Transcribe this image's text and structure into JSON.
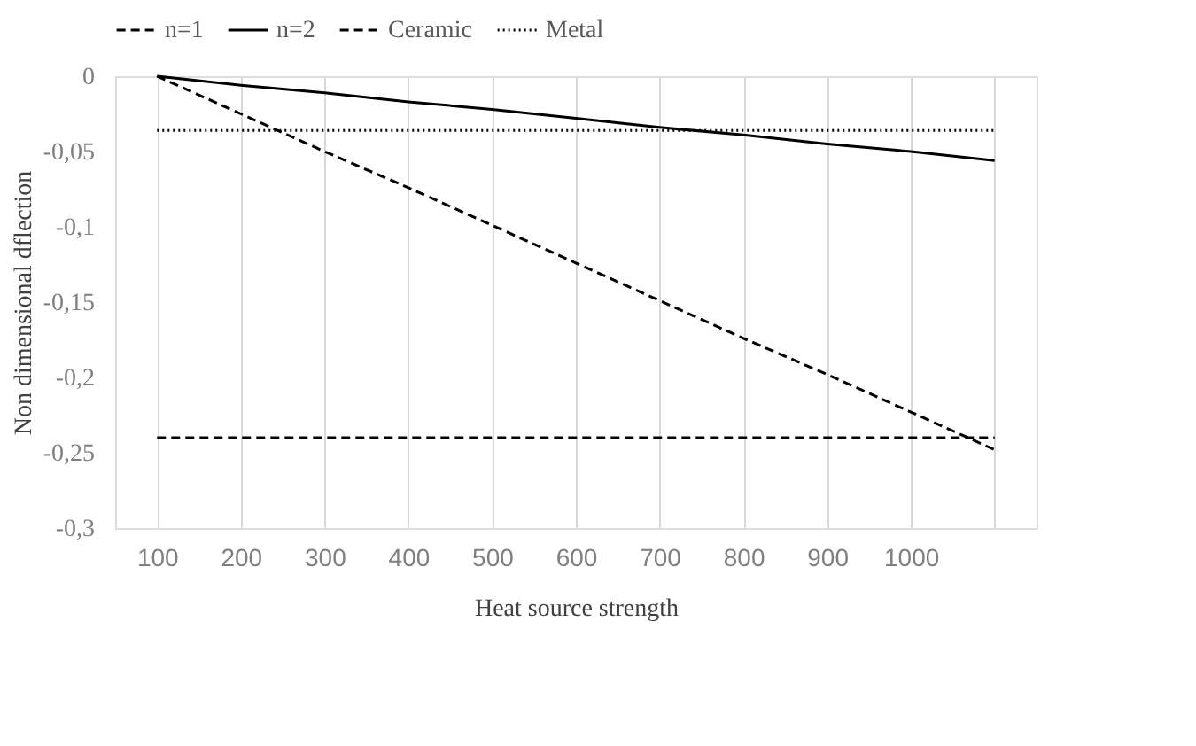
{
  "chart_data": {
    "type": "line",
    "xlabel": "Heat source strength",
    "ylabel": "Non dimensional  dflection",
    "categories": [
      "100",
      "200",
      "300",
      "400",
      "500",
      "600",
      "700",
      "800",
      "900",
      "1000",
      null
    ],
    "series": [
      {
        "name": "n=1",
        "color": "#000000",
        "line_style": "dashed",
        "values": [
          0,
          -0.025,
          -0.05,
          -0.074,
          -0.099,
          -0.124,
          -0.149,
          -0.174,
          -0.198,
          -0.223,
          -0.248
        ]
      },
      {
        "name": "n=2",
        "color": "#000000",
        "line_style": "solid",
        "values": [
          0,
          -0.006,
          -0.011,
          -0.017,
          -0.022,
          -0.028,
          -0.034,
          -0.039,
          -0.045,
          -0.05,
          -0.056
        ]
      },
      {
        "name": "Ceramic",
        "color": "#000000",
        "line_style": "dashed",
        "values": [
          -0.24,
          -0.24,
          -0.24,
          -0.24,
          -0.24,
          -0.24,
          -0.24,
          -0.24,
          -0.24,
          -0.24,
          -0.24
        ]
      },
      {
        "name": "Metal",
        "color": "#000000",
        "line_style": "dotted",
        "values": [
          -0.036,
          -0.036,
          -0.036,
          -0.036,
          -0.036,
          -0.036,
          -0.036,
          -0.036,
          -0.036,
          -0.036,
          -0.036
        ]
      }
    ],
    "ylim": [
      -0.3,
      0
    ],
    "yticks": [
      0,
      {
        "value": -0.05,
        "label": "-0,05"
      },
      {
        "value": -0.1,
        "label": "-0,1"
      },
      {
        "value": -0.15,
        "label": "-0,15"
      },
      {
        "value": -0.2,
        "label": "-0,2"
      },
      {
        "value": -0.25,
        "label": "-0,25"
      },
      {
        "value": -0.3,
        "label": "-0,3"
      }
    ],
    "grid": "x",
    "legend": "top",
    "marker": "none"
  }
}
